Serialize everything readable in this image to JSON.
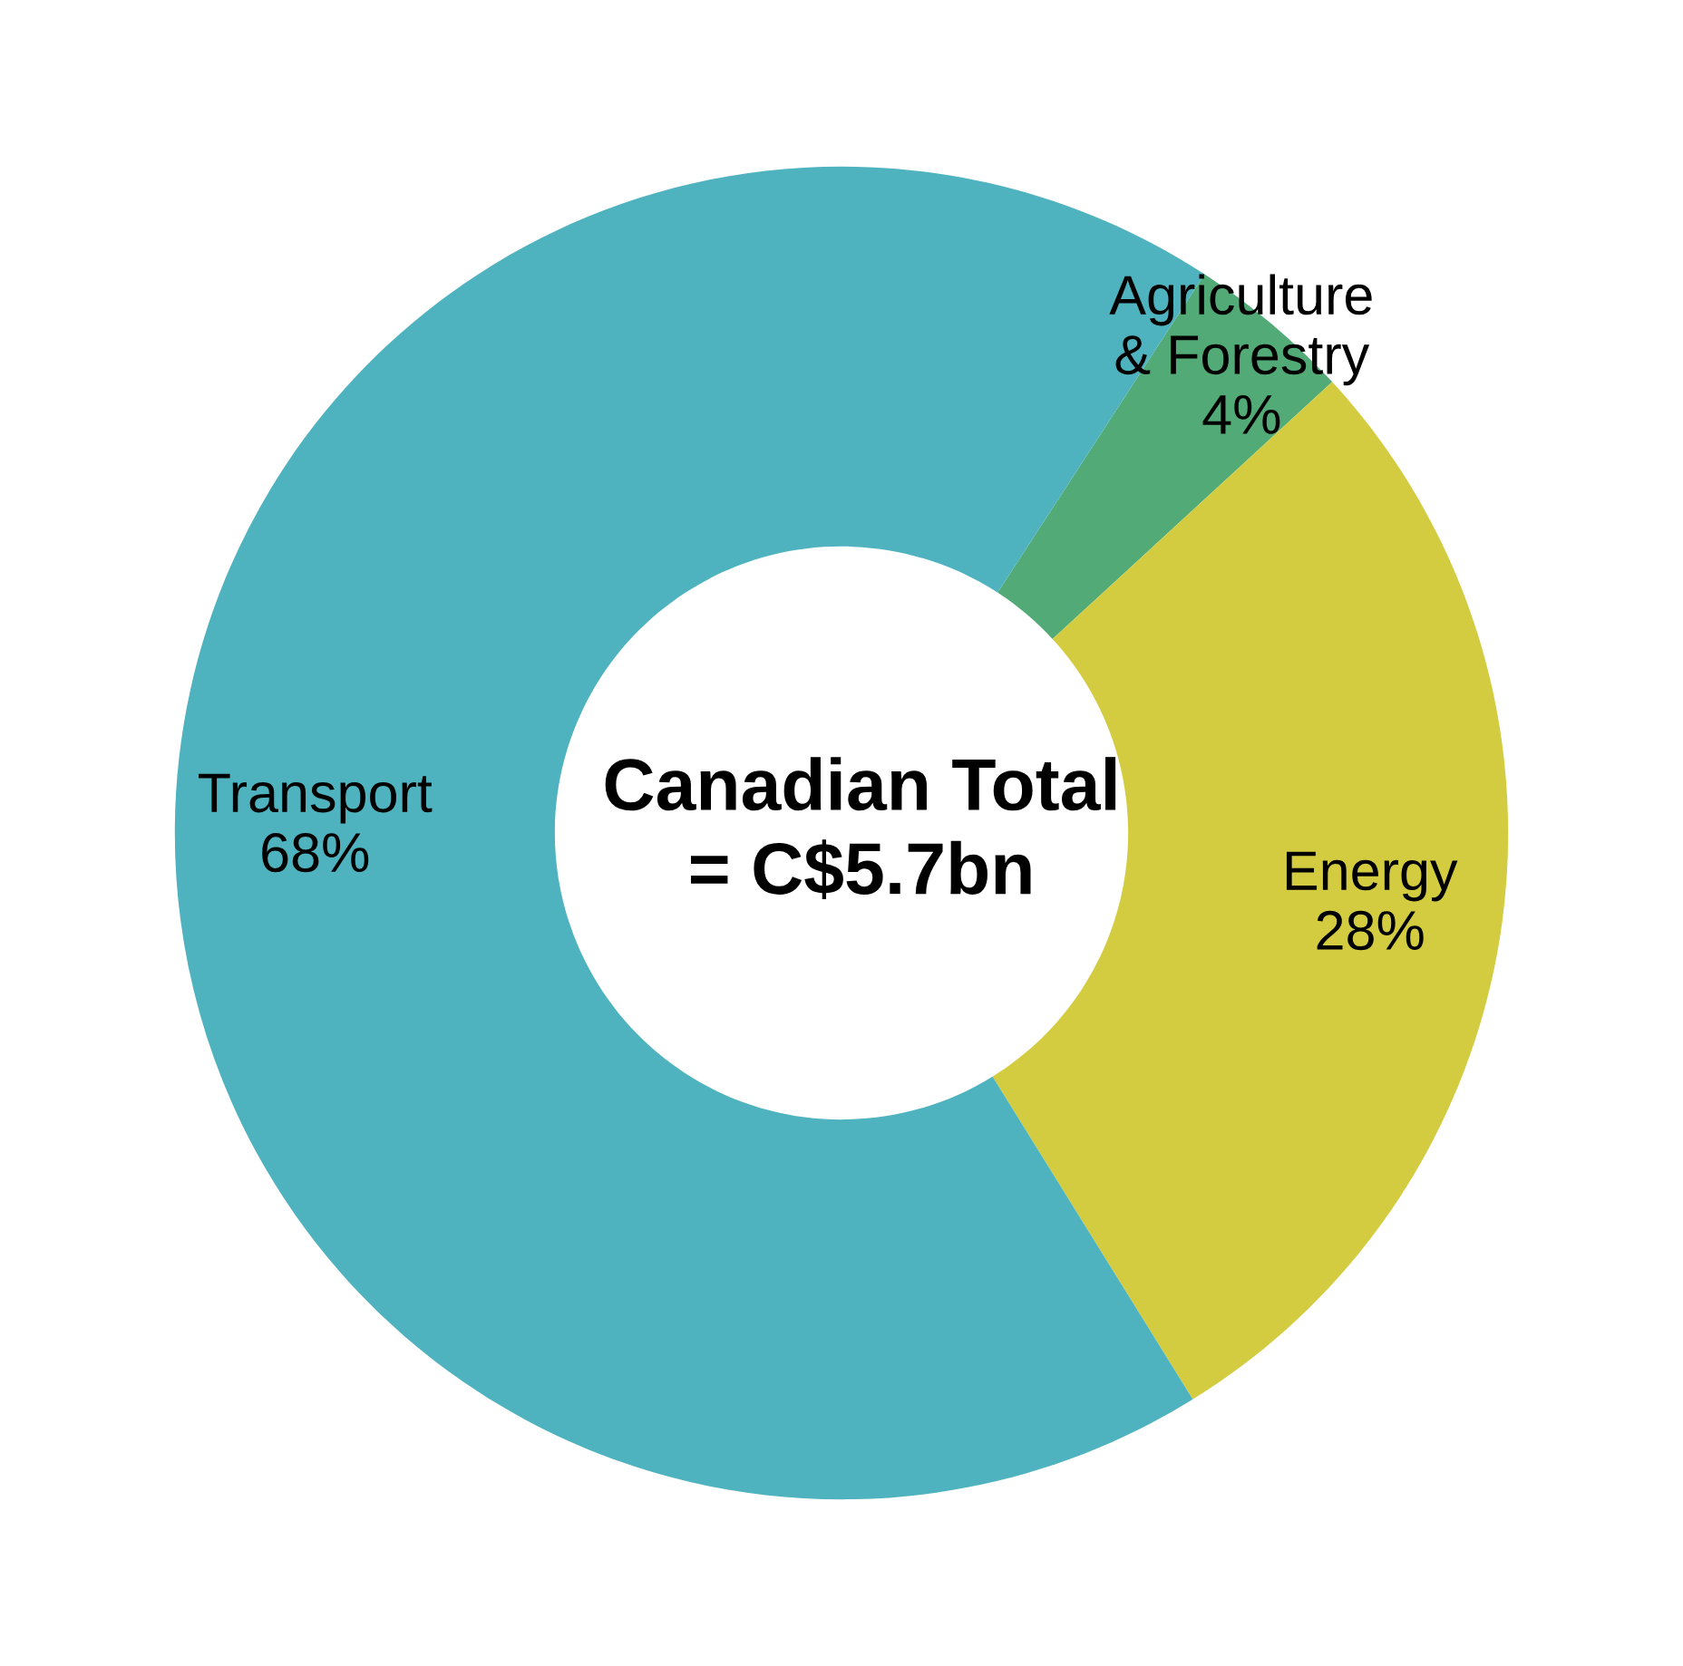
{
  "chart_data": {
    "type": "donut",
    "categories": [
      "Agriculture & Forestry",
      "Energy",
      "Transport"
    ],
    "values": [
      4,
      28,
      68
    ],
    "value_labels": [
      "4%",
      "28%",
      "68%"
    ],
    "colors": [
      "#52ab76",
      "#d4cc40",
      "#4fb3bf"
    ],
    "annotations": [
      "Canadian Total\n= C$5.7bn"
    ],
    "legend": false
  }
}
